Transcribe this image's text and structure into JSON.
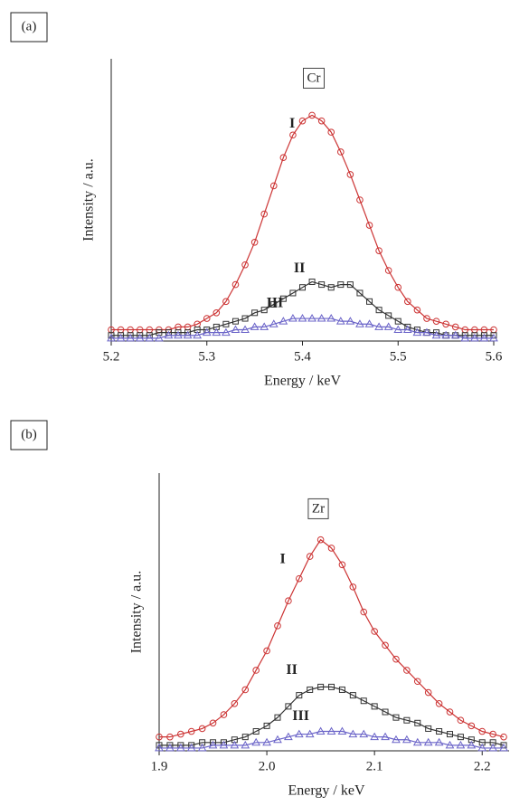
{
  "chart_data": [
    {
      "type": "line",
      "panel_label": "(a)",
      "element": "Cr",
      "x_label": "Energy / keV",
      "y_label": "Intensity / a.u.",
      "xlim": [
        5.2,
        5.6
      ],
      "xticks": [
        5.2,
        5.3,
        5.4,
        5.5,
        5.6
      ],
      "ylim": [
        0,
        100
      ],
      "x": [
        5.2,
        5.21,
        5.22,
        5.23,
        5.24,
        5.25,
        5.26,
        5.27,
        5.28,
        5.29,
        5.3,
        5.31,
        5.32,
        5.33,
        5.34,
        5.35,
        5.36,
        5.37,
        5.38,
        5.39,
        5.4,
        5.41,
        5.42,
        5.43,
        5.44,
        5.45,
        5.46,
        5.47,
        5.48,
        5.49,
        5.5,
        5.51,
        5.52,
        5.53,
        5.54,
        5.55,
        5.56,
        5.57,
        5.58,
        5.59,
        5.6
      ],
      "series": [
        {
          "name": "I",
          "color": "#cc3333",
          "marker": "circle",
          "values": [
            4,
            4,
            4,
            4,
            4,
            4,
            4,
            5,
            5,
            6,
            8,
            10,
            14,
            20,
            27,
            35,
            45,
            55,
            65,
            73,
            78,
            80,
            78,
            74,
            67,
            59,
            50,
            41,
            32,
            25,
            19,
            14,
            11,
            8,
            7,
            6,
            5,
            4,
            4,
            4,
            4
          ]
        },
        {
          "name": "II",
          "color": "#333333",
          "marker": "square",
          "values": [
            2,
            2,
            2,
            2,
            2,
            3,
            3,
            3,
            3,
            4,
            4,
            5,
            6,
            7,
            8,
            10,
            11,
            13,
            15,
            17,
            19,
            21,
            20,
            19,
            20,
            20,
            17,
            14,
            11,
            9,
            7,
            5,
            4,
            3,
            3,
            2,
            2,
            2,
            2,
            2,
            2
          ]
        },
        {
          "name": "III",
          "color": "#6a63c8",
          "marker": "triangle",
          "values": [
            1,
            1,
            1,
            1,
            1,
            1,
            2,
            2,
            2,
            2,
            3,
            3,
            3,
            4,
            4,
            5,
            5,
            6,
            7,
            8,
            8,
            8,
            8,
            8,
            7,
            7,
            6,
            6,
            5,
            5,
            4,
            4,
            3,
            3,
            2,
            2,
            2,
            1,
            1,
            1,
            1
          ]
        }
      ]
    },
    {
      "type": "line",
      "panel_label": "(b)",
      "element": "Zr",
      "x_label": "Energy / keV",
      "y_label": "Intensity / a.u.",
      "xlim": [
        1.9,
        2.225
      ],
      "xticks": [
        1.9,
        {
          "value": 2,
          "label": "2.0"
        },
        2.1,
        2.2
      ],
      "ylim": [
        0,
        100
      ],
      "x": [
        1.9,
        1.91,
        1.92,
        1.93,
        1.94,
        1.95,
        1.96,
        1.97,
        1.98,
        1.99,
        2,
        2.01,
        2.02,
        2.03,
        2.04,
        2.05,
        2.06,
        2.07,
        2.08,
        2.09,
        2.1,
        2.11,
        2.12,
        2.13,
        2.14,
        2.15,
        2.16,
        2.17,
        2.18,
        2.19,
        2.2,
        2.21,
        2.22
      ],
      "series": [
        {
          "name": "I",
          "color": "#cc3333",
          "marker": "circle",
          "values": [
            5,
            5,
            6,
            7,
            8,
            10,
            13,
            17,
            22,
            29,
            36,
            45,
            54,
            62,
            70,
            76,
            73,
            67,
            59,
            50,
            43,
            38,
            33,
            29,
            25,
            21,
            17,
            14,
            11,
            9,
            7,
            6,
            5
          ]
        },
        {
          "name": "II",
          "color": "#333333",
          "marker": "square",
          "values": [
            2,
            2,
            2,
            2,
            3,
            3,
            3,
            4,
            5,
            7,
            9,
            12,
            16,
            20,
            22,
            23,
            23,
            22,
            20,
            18,
            16,
            14,
            12,
            11,
            10,
            8,
            7,
            6,
            5,
            4,
            3,
            3,
            2
          ]
        },
        {
          "name": "III",
          "color": "#6a63c8",
          "marker": "triangle",
          "values": [
            1,
            1,
            1,
            1,
            1,
            2,
            2,
            2,
            2,
            3,
            3,
            4,
            5,
            6,
            6,
            7,
            7,
            7,
            6,
            6,
            5,
            5,
            4,
            4,
            3,
            3,
            3,
            2,
            2,
            2,
            1,
            1,
            1
          ]
        }
      ]
    }
  ]
}
